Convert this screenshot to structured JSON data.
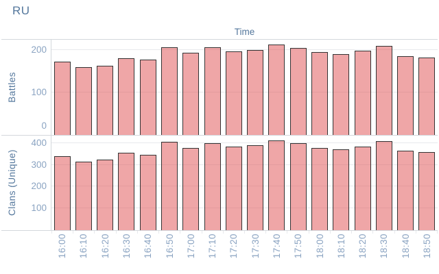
{
  "title": "RU",
  "colors": {
    "bar_fill": "rgba(225,87,89,0.53)",
    "bar_border": "#333333",
    "title_color": "#54779c",
    "tick_color": "#8ba4c2",
    "line_color": "#d3d7dc",
    "grid_color": "#e7e9ec"
  },
  "chart_data": {
    "type": "bar",
    "title": "RU",
    "x_title": "Time",
    "grid": true,
    "legend": "none",
    "categories": [
      "16:00",
      "16:10",
      "16:20",
      "16:30",
      "16:40",
      "16:50",
      "17:00",
      "17:10",
      "17:20",
      "17:30",
      "17:40",
      "17:50",
      "18:00",
      "18:10",
      "18:20",
      "18:30",
      "18:40",
      "18:50"
    ],
    "panes": [
      {
        "ylabel": "Battles",
        "ymax": 224,
        "ylim": [
          0,
          224
        ],
        "yticks": [
          0,
          100,
          200
        ],
        "values": [
          172,
          160,
          163,
          180,
          177,
          206,
          194,
          206,
          197,
          200,
          213,
          204,
          195,
          190,
          198,
          209,
          186,
          182
        ]
      },
      {
        "ylabel": "Clans (Unique)",
        "ymax": 434,
        "ylim": [
          0,
          434
        ],
        "yticks": [
          100,
          200,
          300,
          400
        ],
        "values": [
          340,
          316,
          323,
          354,
          347,
          406,
          378,
          401,
          383,
          390,
          413,
          399,
          378,
          370,
          383,
          409,
          365,
          357
        ]
      }
    ]
  }
}
